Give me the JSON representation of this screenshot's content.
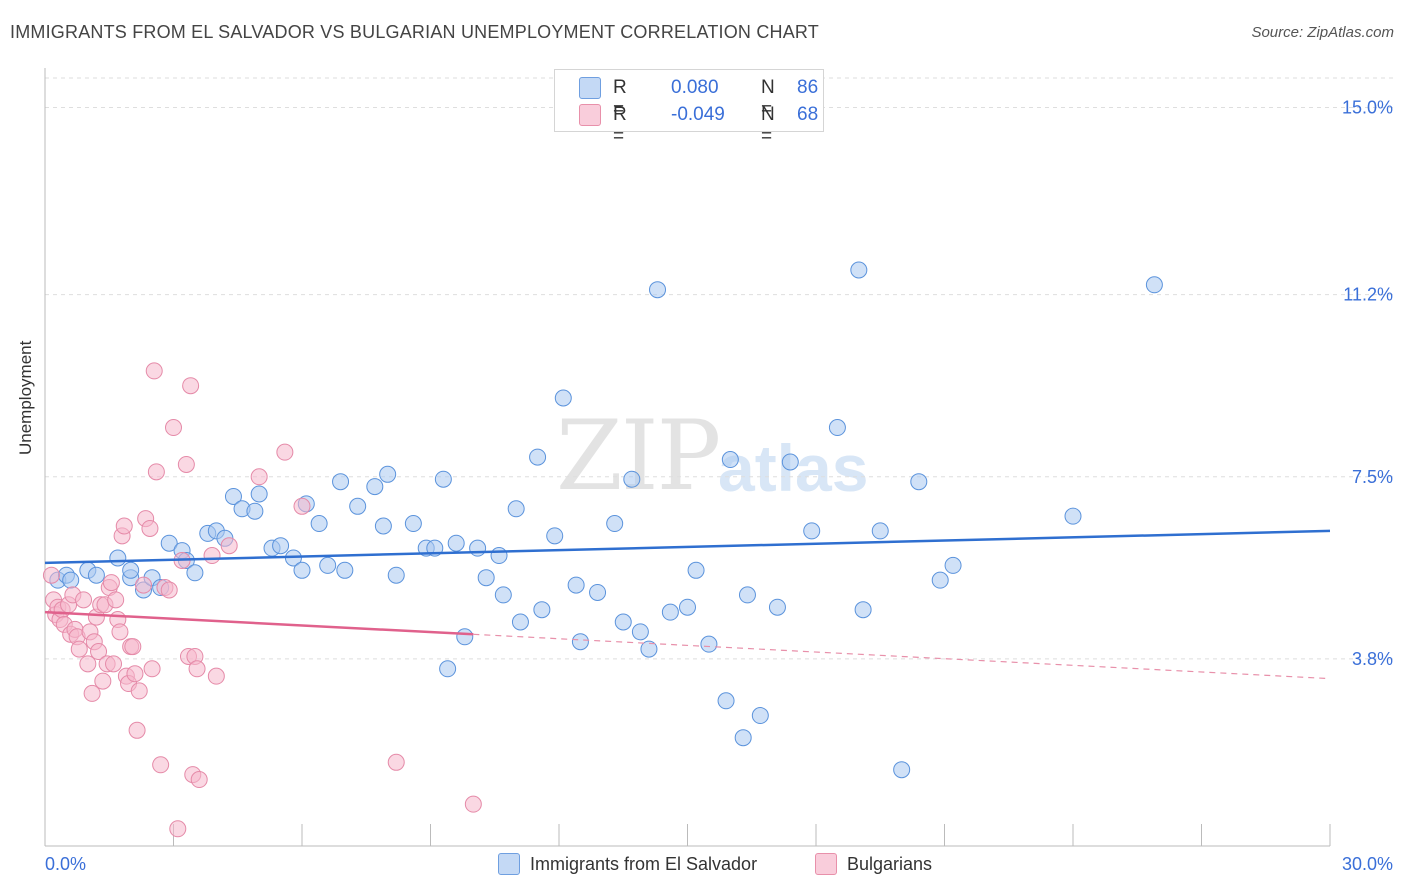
{
  "title": "IMMIGRANTS FROM EL SALVADOR VS BULGARIAN UNEMPLOYMENT CORRELATION CHART",
  "source": "Source: ZipAtlas.com",
  "watermark": {
    "zip": "ZIP",
    "atlas": "atlas"
  },
  "legend": {
    "rows": [
      {
        "r_label": "R =",
        "r_value": "0.080",
        "n_label": "N =",
        "n_value": "86",
        "color": "#a9c8f0"
      },
      {
        "r_label": "R =",
        "r_value": "-0.049",
        "n_label": "N =",
        "n_value": "68",
        "color": "#f6b8cc"
      }
    ]
  },
  "bottom_legend": [
    {
      "label": "Immigrants from El Salvador",
      "color": "#a9c8f0"
    },
    {
      "label": "Bulgarians",
      "color": "#f6b8cc"
    }
  ],
  "chart_data": {
    "type": "scatter",
    "title": "IMMIGRANTS FROM EL SALVADOR VS BULGARIAN UNEMPLOYMENT CORRELATION CHART",
    "xlabel": "",
    "ylabel": "Unemployment",
    "xlim": [
      0,
      30
    ],
    "ylim": [
      0,
      15.6
    ],
    "x_tick_labels": [
      "0.0%",
      "30.0%"
    ],
    "y_ticks": [
      3.8,
      7.5,
      11.2,
      15.0
    ],
    "y_tick_labels": [
      "3.8%",
      "7.5%",
      "11.2%",
      "15.0%"
    ],
    "grid": true,
    "legend_position": "top-center",
    "series": [
      {
        "name": "Immigrants from El Salvador",
        "color": "#5b93dc",
        "fill": "#a9c8f0",
        "trend": {
          "x": [
            0,
            30
          ],
          "y": [
            5.75,
            6.4
          ],
          "color": "#2f6fd0"
        },
        "points": [
          [
            0.3,
            5.4
          ],
          [
            0.5,
            5.5
          ],
          [
            0.6,
            5.4
          ],
          [
            1.0,
            5.6
          ],
          [
            1.2,
            5.5
          ],
          [
            1.7,
            5.85
          ],
          [
            2.0,
            5.45
          ],
          [
            2.0,
            5.6
          ],
          [
            2.3,
            5.2
          ],
          [
            2.5,
            5.45
          ],
          [
            2.7,
            5.25
          ],
          [
            2.9,
            6.15
          ],
          [
            3.2,
            6.0
          ],
          [
            3.3,
            5.8
          ],
          [
            3.5,
            5.55
          ],
          [
            3.8,
            6.35
          ],
          [
            4.0,
            6.4
          ],
          [
            4.2,
            6.25
          ],
          [
            4.4,
            7.1
          ],
          [
            4.6,
            6.85
          ],
          [
            4.9,
            6.8
          ],
          [
            5.0,
            7.15
          ],
          [
            5.3,
            6.05
          ],
          [
            5.5,
            6.1
          ],
          [
            5.8,
            5.85
          ],
          [
            6.0,
            5.6
          ],
          [
            6.1,
            6.95
          ],
          [
            6.4,
            6.55
          ],
          [
            6.6,
            5.7
          ],
          [
            6.9,
            7.4
          ],
          [
            7.0,
            5.6
          ],
          [
            7.3,
            6.9
          ],
          [
            7.7,
            7.3
          ],
          [
            7.9,
            6.5
          ],
          [
            8.0,
            7.55
          ],
          [
            8.2,
            5.5
          ],
          [
            8.6,
            6.55
          ],
          [
            8.9,
            6.05
          ],
          [
            9.1,
            6.05
          ],
          [
            9.3,
            7.45
          ],
          [
            9.4,
            3.6
          ],
          [
            9.6,
            6.15
          ],
          [
            9.8,
            4.25
          ],
          [
            10.1,
            6.05
          ],
          [
            10.3,
            5.45
          ],
          [
            10.6,
            5.9
          ],
          [
            10.7,
            5.1
          ],
          [
            11.0,
            6.85
          ],
          [
            11.1,
            4.55
          ],
          [
            11.5,
            7.9
          ],
          [
            11.6,
            4.8
          ],
          [
            11.9,
            6.3
          ],
          [
            12.1,
            9.1
          ],
          [
            12.4,
            5.3
          ],
          [
            12.5,
            4.15
          ],
          [
            12.9,
            5.15
          ],
          [
            13.3,
            6.55
          ],
          [
            13.5,
            4.55
          ],
          [
            13.7,
            7.45
          ],
          [
            13.9,
            4.35
          ],
          [
            14.1,
            4.0
          ],
          [
            14.3,
            11.3
          ],
          [
            14.6,
            4.75
          ],
          [
            15.0,
            4.85
          ],
          [
            15.2,
            5.6
          ],
          [
            15.5,
            4.1
          ],
          [
            15.9,
            2.95
          ],
          [
            16.0,
            7.85
          ],
          [
            16.3,
            2.2
          ],
          [
            16.4,
            5.1
          ],
          [
            16.7,
            2.65
          ],
          [
            17.1,
            4.85
          ],
          [
            17.4,
            7.8
          ],
          [
            17.9,
            6.4
          ],
          [
            18.5,
            8.5
          ],
          [
            19.0,
            11.7
          ],
          [
            19.1,
            4.8
          ],
          [
            19.5,
            6.4
          ],
          [
            20.0,
            1.55
          ],
          [
            20.4,
            7.4
          ],
          [
            20.9,
            5.4
          ],
          [
            21.2,
            5.7
          ],
          [
            24.0,
            6.7
          ],
          [
            25.9,
            11.4
          ]
        ]
      },
      {
        "name": "Bulgarians",
        "color": "#e58aa8",
        "fill": "#f6b8cc",
        "trend": {
          "x": [
            0,
            10
          ],
          "y": [
            4.75,
            4.3
          ],
          "color": "#e0618c"
        },
        "trend_dashed": {
          "x": [
            10,
            30
          ],
          "y": [
            4.3,
            3.4
          ],
          "color": "#e890aa"
        },
        "points": [
          [
            0.15,
            5.5
          ],
          [
            0.2,
            5.0
          ],
          [
            0.25,
            4.7
          ],
          [
            0.3,
            4.85
          ],
          [
            0.35,
            4.6
          ],
          [
            0.4,
            4.8
          ],
          [
            0.45,
            4.5
          ],
          [
            0.55,
            4.9
          ],
          [
            0.6,
            4.3
          ],
          [
            0.65,
            5.1
          ],
          [
            0.7,
            4.4
          ],
          [
            0.75,
            4.25
          ],
          [
            0.8,
            4.0
          ],
          [
            0.9,
            5.0
          ],
          [
            1.0,
            3.7
          ],
          [
            1.05,
            4.35
          ],
          [
            1.1,
            3.1
          ],
          [
            1.15,
            4.15
          ],
          [
            1.2,
            4.65
          ],
          [
            1.25,
            3.95
          ],
          [
            1.3,
            4.9
          ],
          [
            1.35,
            3.35
          ],
          [
            1.4,
            4.9
          ],
          [
            1.45,
            3.7
          ],
          [
            1.5,
            5.25
          ],
          [
            1.55,
            5.35
          ],
          [
            1.6,
            3.7
          ],
          [
            1.65,
            5.0
          ],
          [
            1.7,
            4.6
          ],
          [
            1.75,
            4.35
          ],
          [
            1.8,
            6.3
          ],
          [
            1.85,
            6.5
          ],
          [
            1.9,
            3.45
          ],
          [
            1.95,
            3.3
          ],
          [
            2.0,
            4.05
          ],
          [
            2.05,
            4.05
          ],
          [
            2.1,
            3.5
          ],
          [
            2.15,
            2.35
          ],
          [
            2.2,
            3.15
          ],
          [
            2.3,
            5.3
          ],
          [
            2.35,
            6.65
          ],
          [
            2.45,
            6.45
          ],
          [
            2.5,
            3.6
          ],
          [
            2.55,
            9.65
          ],
          [
            2.6,
            7.6
          ],
          [
            2.7,
            1.65
          ],
          [
            2.8,
            5.25
          ],
          [
            2.9,
            5.2
          ],
          [
            3.0,
            8.5
          ],
          [
            3.1,
            0.35
          ],
          [
            3.2,
            5.8
          ],
          [
            3.3,
            7.75
          ],
          [
            3.35,
            3.85
          ],
          [
            3.4,
            9.35
          ],
          [
            3.45,
            1.45
          ],
          [
            3.5,
            3.85
          ],
          [
            3.55,
            3.6
          ],
          [
            3.6,
            1.35
          ],
          [
            3.9,
            5.9
          ],
          [
            4.0,
            3.45
          ],
          [
            4.3,
            6.1
          ],
          [
            5.0,
            7.5
          ],
          [
            5.6,
            8.0
          ],
          [
            6.0,
            6.9
          ],
          [
            8.2,
            1.7
          ],
          [
            10.0,
            0.85
          ]
        ]
      }
    ]
  }
}
